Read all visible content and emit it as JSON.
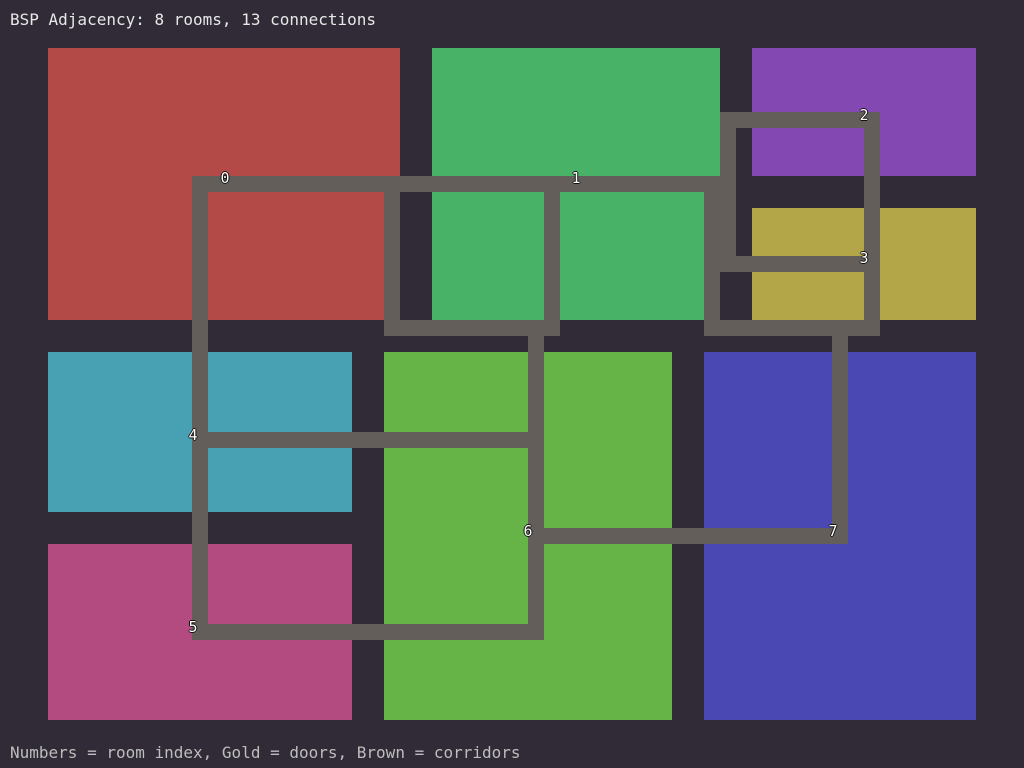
{
  "title": "BSP Adjacency: 8 rooms, 13 connections",
  "footer": "Numbers = room index, Gold = doors, Brown = corridors",
  "colors": {
    "background": "#302b36",
    "corridor": "#635e5a"
  },
  "rooms": [
    {
      "index": "0",
      "color": "#b34a48"
    },
    {
      "index": "1",
      "color": "#48b366"
    },
    {
      "index": "2",
      "color": "#8448b3"
    },
    {
      "index": "3",
      "color": "#b3a648"
    },
    {
      "index": "4",
      "color": "#48a0b3"
    },
    {
      "index": "5",
      "color": "#b34a80"
    },
    {
      "index": "6",
      "color": "#66b348"
    },
    {
      "index": "7",
      "color": "#4a48b3"
    }
  ]
}
